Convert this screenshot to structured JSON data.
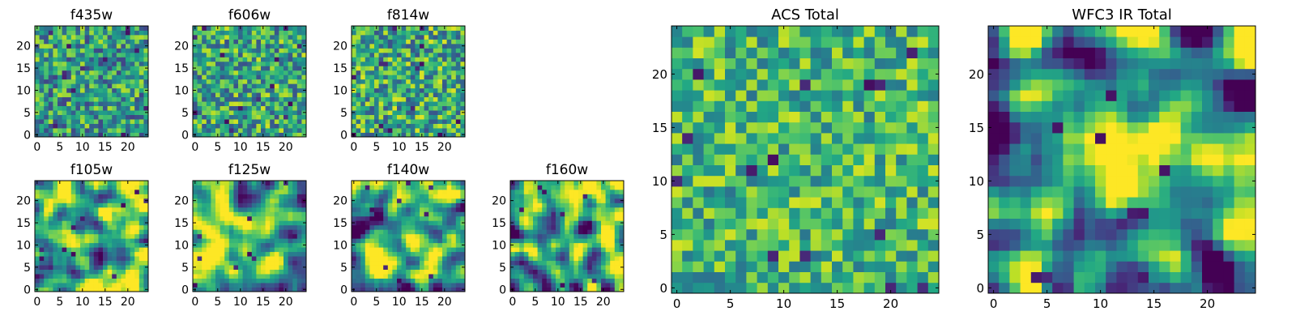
{
  "figure": {
    "background": "#ffffff"
  },
  "chart_data": [
    {
      "type": "heatmap",
      "title": "f435w",
      "xticks": [
        "0",
        "5",
        "10",
        "15",
        "20"
      ],
      "yticks": [
        "0",
        "5",
        "10",
        "15",
        "20"
      ],
      "xlim": [
        -0.5,
        24.5
      ],
      "ylim": [
        -0.5,
        24.5
      ],
      "grid": false,
      "colormap": "viridis",
      "size": 25,
      "seed": 11,
      "smooth": 0,
      "bias": 0.55,
      "spread": 0.2,
      "blob": null
    },
    {
      "type": "heatmap",
      "title": "f606w",
      "xticks": [
        "0",
        "5",
        "10",
        "15",
        "20"
      ],
      "yticks": [
        "0",
        "5",
        "10",
        "15",
        "20"
      ],
      "xlim": [
        -0.5,
        24.5
      ],
      "ylim": [
        -0.5,
        24.5
      ],
      "grid": false,
      "colormap": "viridis",
      "size": 25,
      "seed": 23,
      "smooth": 0,
      "bias": 0.58,
      "spread": 0.2,
      "blob": null
    },
    {
      "type": "heatmap",
      "title": "f814w",
      "xticks": [
        "0",
        "5",
        "10",
        "15",
        "20"
      ],
      "yticks": [
        "0",
        "5",
        "10",
        "15",
        "20"
      ],
      "xlim": [
        -0.5,
        24.5
      ],
      "ylim": [
        -0.5,
        24.5
      ],
      "grid": false,
      "colormap": "viridis",
      "size": 25,
      "seed": 37,
      "smooth": 0,
      "bias": 0.6,
      "spread": 0.21,
      "blob": null
    },
    {
      "type": "heatmap",
      "title": "f105w",
      "xticks": [
        "0",
        "5",
        "10",
        "15",
        "20"
      ],
      "yticks": [
        "0",
        "5",
        "10",
        "15",
        "20"
      ],
      "xlim": [
        -0.5,
        24.5
      ],
      "ylim": [
        -0.5,
        24.5
      ],
      "grid": false,
      "colormap": "viridis",
      "size": 25,
      "seed": 41,
      "smooth": 2,
      "bias": 0.66,
      "spread": 0.28,
      "blob": null
    },
    {
      "type": "heatmap",
      "title": "f125w",
      "xticks": [
        "0",
        "5",
        "10",
        "15",
        "20"
      ],
      "yticks": [
        "0",
        "5",
        "10",
        "15",
        "20"
      ],
      "xlim": [
        -0.5,
        24.5
      ],
      "ylim": [
        -0.5,
        24.5
      ],
      "grid": false,
      "colormap": "viridis",
      "size": 25,
      "seed": 53,
      "smooth": 2,
      "bias": 0.64,
      "spread": 0.28,
      "blob": null
    },
    {
      "type": "heatmap",
      "title": "f140w",
      "xticks": [
        "0",
        "5",
        "10",
        "15",
        "20"
      ],
      "yticks": [
        "0",
        "5",
        "10",
        "15",
        "20"
      ],
      "xlim": [
        -0.5,
        24.5
      ],
      "ylim": [
        -0.5,
        24.5
      ],
      "grid": false,
      "colormap": "viridis",
      "size": 25,
      "seed": 67,
      "smooth": 2,
      "bias": 0.6,
      "spread": 0.3,
      "blob": null
    },
    {
      "type": "heatmap",
      "title": "f160w",
      "xticks": [
        "0",
        "5",
        "10",
        "15",
        "20"
      ],
      "yticks": [
        "0",
        "5",
        "10",
        "15",
        "20"
      ],
      "xlim": [
        -0.5,
        24.5
      ],
      "ylim": [
        -0.5,
        24.5
      ],
      "grid": false,
      "colormap": "viridis",
      "size": 25,
      "seed": 79,
      "smooth": 2,
      "bias": 0.62,
      "spread": 0.3,
      "blob": null
    },
    {
      "type": "heatmap",
      "title": "ACS Total",
      "xticks": [
        "0",
        "5",
        "10",
        "15",
        "20"
      ],
      "yticks": [
        "0",
        "5",
        "10",
        "15",
        "20"
      ],
      "xlim": [
        -0.5,
        24.5
      ],
      "ylim": [
        -0.5,
        24.5
      ],
      "grid": false,
      "colormap": "viridis",
      "size": 25,
      "seed": 97,
      "smooth": 0,
      "bias": 0.66,
      "spread": 0.17,
      "blob": null
    },
    {
      "type": "heatmap",
      "title": "WFC3 IR Total",
      "xticks": [
        "0",
        "5",
        "10",
        "15",
        "20"
      ],
      "yticks": [
        "0",
        "5",
        "10",
        "15",
        "20"
      ],
      "xlim": [
        -0.5,
        24.5
      ],
      "ylim": [
        -0.5,
        24.5
      ],
      "grid": false,
      "colormap": "viridis",
      "size": 25,
      "seed": 113,
      "smooth": 2,
      "bias": 0.5,
      "spread": 0.3,
      "blob": {
        "cx": 12,
        "cy": 12,
        "sigma": 3.5,
        "amp": 0.42
      }
    }
  ]
}
